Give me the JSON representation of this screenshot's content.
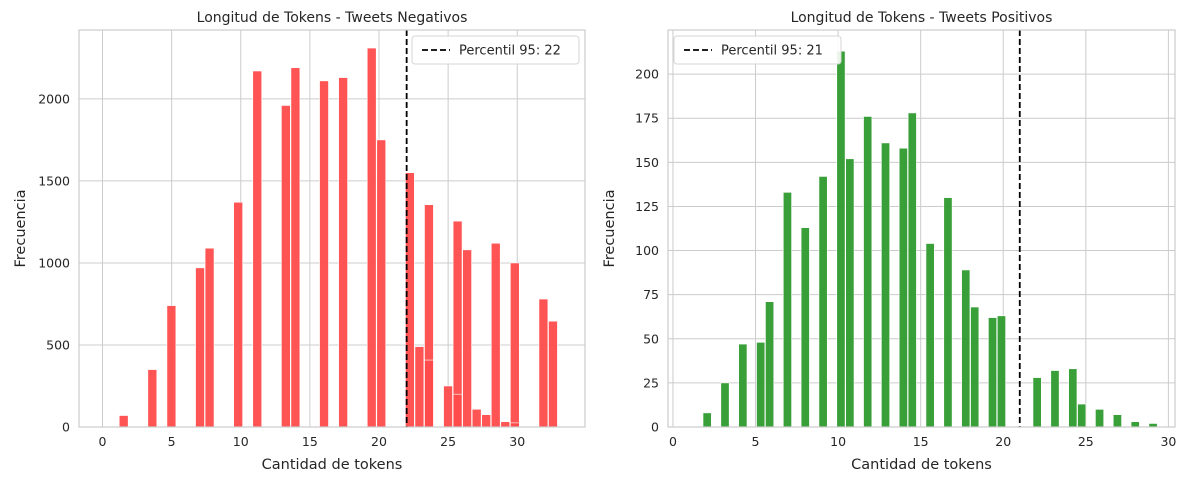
{
  "chart_data": [
    {
      "type": "bar",
      "title": "Longitud de Tokens - Tweets Negativos",
      "xlabel": "Cantidad de tokens",
      "ylabel": "Frecuencia",
      "xlim": [
        -1.7,
        34.9
      ],
      "ylim": [
        0,
        2420
      ],
      "xticks": [
        "0",
        "5",
        "10",
        "15",
        "20",
        "25",
        "30"
      ],
      "yticks": [
        "0",
        "500",
        "1000",
        "1500",
        "2000"
      ],
      "grid": true,
      "legend_position": "top-right",
      "bar_color": "#ff4b4b",
      "bin_width": 0.69,
      "series": [
        {
          "x": [
            0.52,
            1.21,
            2.59,
            3.28,
            4.66,
            5.35,
            6.73,
            7.42,
            8.8,
            9.49,
            10.87,
            11.56,
            12.94,
            13.63,
            15.01,
            15.7,
            17.08,
            17.77,
            19.15,
            19.84,
            21.22,
            21.91,
            23.29,
            23.98,
            25.36,
            26.05,
            27.43,
            28.12,
            29.5,
            30.19,
            31.57,
            32.26,
            33.64
          ],
          "values": [
            2,
            70,
            0,
            350,
            740,
            0,
            970,
            1090,
            0,
            1370,
            2170,
            0,
            1960,
            2190,
            0,
            2110,
            2130,
            0,
            2310,
            1750,
            0,
            1550,
            1355,
            0,
            1255,
            1080,
            0,
            1120,
            1000,
            0,
            780,
            645,
            0
          ]
        }
      ],
      "extra_bars": {
        "x": [
          22.6,
          23.29,
          24.67,
          25.36,
          26.74,
          27.43,
          28.81,
          29.5
        ],
        "values": [
          490,
          408,
          250,
          200,
          108,
          75,
          32,
          25
        ]
      },
      "threshold": {
        "x": 22,
        "color": "#000000",
        "label": "Percentil 95: 22"
      }
    },
    {
      "type": "bar",
      "title": "Longitud de Tokens - Tweets Positivos",
      "xlabel": "Cantidad de tokens",
      "ylabel": "Frecuencia",
      "xlim": [
        -0.3,
        30.4
      ],
      "ylim": [
        0,
        225
      ],
      "xticks": [
        "0",
        "5",
        "10",
        "15",
        "20",
        "25",
        "30"
      ],
      "yticks": [
        "0",
        "25",
        "50",
        "75",
        "100",
        "125",
        "150",
        "175",
        "200"
      ],
      "grid": true,
      "legend_position": "top-left",
      "bar_color": "#2e9a2e",
      "bin_width": 0.54,
      "series": [
        {
          "x": [
            1.82,
            2.9,
            3.98,
            5.06,
            5.6,
            6.68,
            7.76,
            8.84,
            9.92,
            10.46,
            11.54,
            12.62,
            13.7,
            14.24,
            15.32,
            16.4,
            17.48,
            18.02,
            19.1,
            19.64,
            20.72,
            21.8,
            22.88,
            23.96,
            24.5,
            25.58,
            26.66,
            27.74,
            28.82
          ],
          "values": [
            8,
            25,
            47,
            48,
            71,
            133,
            113,
            142,
            213,
            152,
            176,
            161,
            158,
            178,
            104,
            130,
            89,
            68,
            62,
            63,
            0,
            28,
            32,
            33,
            13,
            10,
            7,
            3,
            2
          ]
        }
      ],
      "threshold": {
        "x": 21,
        "color": "#000000",
        "label": "Percentil 95: 21"
      }
    }
  ]
}
